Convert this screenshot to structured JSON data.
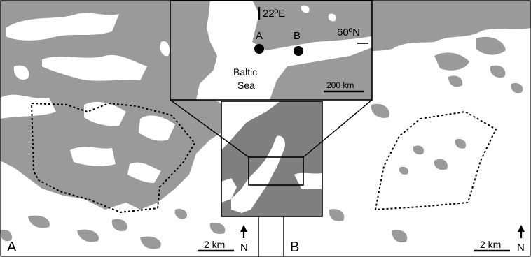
{
  "panels": {
    "left_label": "A",
    "right_label": "B"
  },
  "scale_bars": {
    "left": "2 km",
    "right": "2 km"
  },
  "north_arrows": {
    "left": "N",
    "right": "N"
  },
  "inset": {
    "meridian_label": "22ºE",
    "parallel_label": "60ºN",
    "site_a": "A",
    "site_b": "B",
    "sea_label_line1": "Baltic",
    "sea_label_line2": "Sea",
    "scale_label": "200 km"
  },
  "colors": {
    "land": "#9a9a9a",
    "water": "#ffffff",
    "lines": "#000000"
  }
}
